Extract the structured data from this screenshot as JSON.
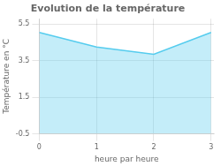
{
  "chart_data": {
    "type": "area",
    "title": "Evolution de la température",
    "xlabel": "heure par heure",
    "ylabel": "Température en °C",
    "x": [
      0,
      1,
      2,
      3
    ],
    "values": [
      5.05,
      4.25,
      3.85,
      5.05
    ],
    "color": "#55ccee",
    "xlim": [
      0,
      3.05
    ],
    "xticks": [
      0,
      1,
      2,
      3
    ],
    "ylim": [
      -0.5,
      5.8
    ],
    "yticks": [
      -0.5,
      1.5,
      3.5,
      5.5
    ],
    "grid": true
  }
}
